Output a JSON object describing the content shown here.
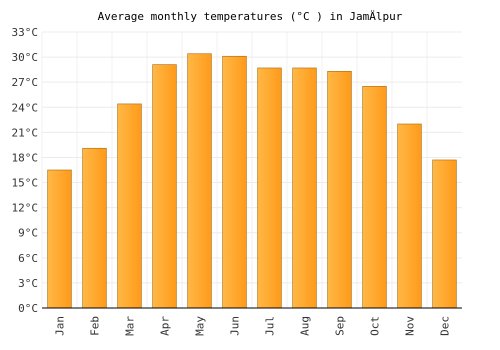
{
  "chart_data": {
    "type": "bar",
    "title": "Average monthly temperatures (°C ) in JamÄlpur",
    "categories": [
      "Jan",
      "Feb",
      "Mar",
      "Apr",
      "May",
      "Jun",
      "Jul",
      "Aug",
      "Sep",
      "Oct",
      "Nov",
      "Dec"
    ],
    "values": [
      16.5,
      19.1,
      24.4,
      29.1,
      30.4,
      30.1,
      28.7,
      28.7,
      28.3,
      26.5,
      22.0,
      17.7
    ],
    "color": "#ffa62b",
    "ylim": [
      0,
      33
    ],
    "yticks": [
      {
        "value": 0,
        "label": "0°C"
      },
      {
        "value": 3,
        "label": "3°C"
      },
      {
        "value": 6,
        "label": "6°C"
      },
      {
        "value": 9,
        "label": "9°C"
      },
      {
        "value": 12,
        "label": "12°C"
      },
      {
        "value": 15,
        "label": "15°C"
      },
      {
        "value": 18,
        "label": "18°C"
      },
      {
        "value": 21,
        "label": "21°C"
      },
      {
        "value": 24,
        "label": "24°C"
      },
      {
        "value": 27,
        "label": "27°C"
      },
      {
        "value": 30,
        "label": "30°C"
      },
      {
        "value": 33,
        "label": "33°C"
      }
    ],
    "grid": true
  }
}
